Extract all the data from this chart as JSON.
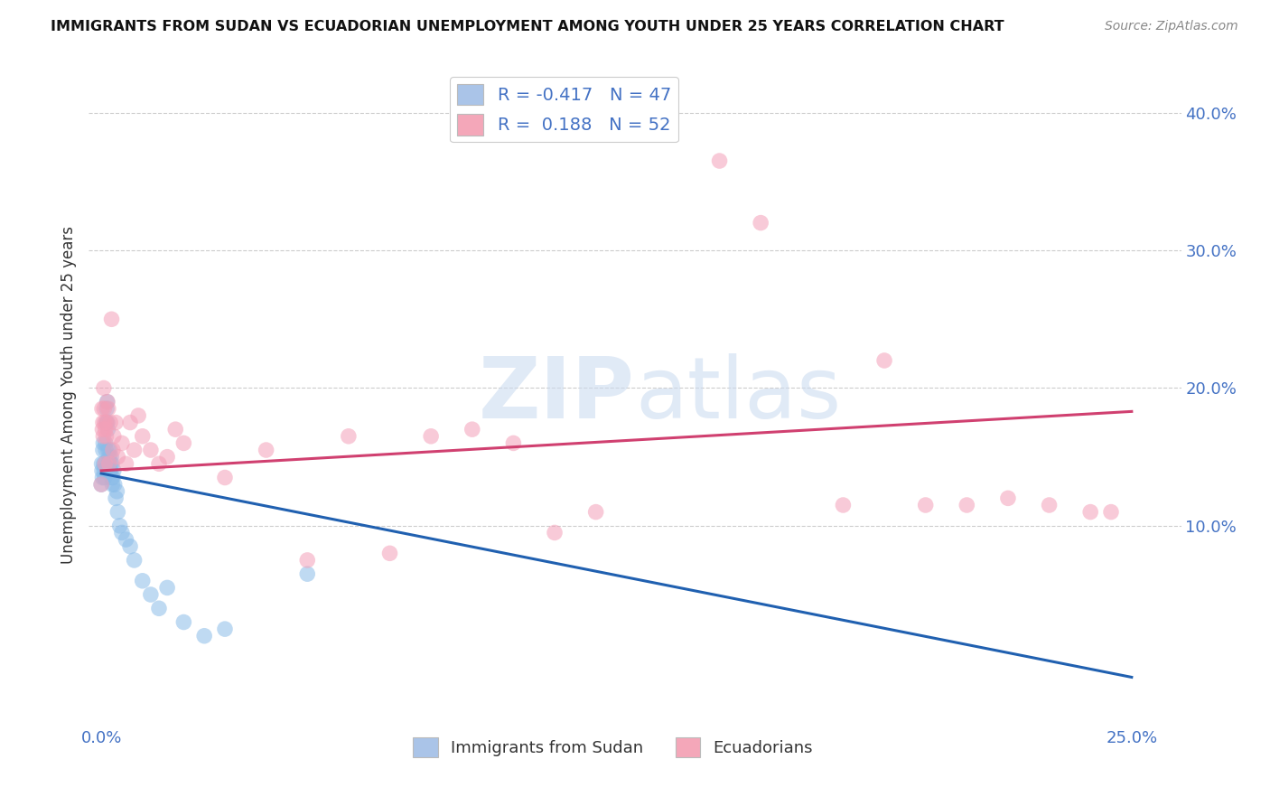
{
  "title": "IMMIGRANTS FROM SUDAN VS ECUADORIAN UNEMPLOYMENT AMONG YOUTH UNDER 25 YEARS CORRELATION CHART",
  "source": "Source: ZipAtlas.com",
  "ylabel": "Unemployment Among Youth under 25 years",
  "xlabel_ticks": [
    "0.0%",
    "25.0%"
  ],
  "xlabel_vals": [
    0.0,
    0.25
  ],
  "ylabel_ticks": [
    "10.0%",
    "20.0%",
    "30.0%",
    "40.0%"
  ],
  "ylabel_vals": [
    0.1,
    0.2,
    0.3,
    0.4
  ],
  "xlim": [
    -0.003,
    0.262
  ],
  "ylim": [
    -0.045,
    0.435
  ],
  "legend1_label": "R = -0.417   N = 47",
  "legend2_label": "R =  0.188   N = 52",
  "legend1_color": "#aac4e8",
  "legend2_color": "#f4a7b9",
  "watermark_zip": "ZIP",
  "watermark_atlas": "atlas",
  "series_blue": {
    "x": [
      0.0,
      0.0001,
      0.0002,
      0.0003,
      0.0004,
      0.0005,
      0.0006,
      0.0007,
      0.0008,
      0.0009,
      0.001,
      0.0011,
      0.0012,
      0.0013,
      0.0014,
      0.0015,
      0.0016,
      0.0017,
      0.0018,
      0.0019,
      0.002,
      0.0021,
      0.0022,
      0.0023,
      0.0024,
      0.0025,
      0.0026,
      0.0027,
      0.0028,
      0.003,
      0.0032,
      0.0035,
      0.0038,
      0.004,
      0.0045,
      0.005,
      0.006,
      0.007,
      0.008,
      0.01,
      0.012,
      0.014,
      0.016,
      0.02,
      0.025,
      0.03,
      0.05
    ],
    "y": [
      0.13,
      0.145,
      0.14,
      0.135,
      0.155,
      0.16,
      0.145,
      0.14,
      0.135,
      0.145,
      0.16,
      0.155,
      0.175,
      0.185,
      0.19,
      0.175,
      0.17,
      0.155,
      0.145,
      0.15,
      0.14,
      0.155,
      0.145,
      0.14,
      0.15,
      0.135,
      0.145,
      0.13,
      0.135,
      0.14,
      0.13,
      0.12,
      0.125,
      0.11,
      0.1,
      0.095,
      0.09,
      0.085,
      0.075,
      0.06,
      0.05,
      0.04,
      0.055,
      0.03,
      0.02,
      0.025,
      0.065
    ]
  },
  "series_pink": {
    "x": [
      0.0,
      0.0002,
      0.0003,
      0.0004,
      0.0005,
      0.0006,
      0.0007,
      0.0008,
      0.0009,
      0.001,
      0.0012,
      0.0013,
      0.0015,
      0.0017,
      0.0019,
      0.0022,
      0.0025,
      0.0028,
      0.003,
      0.0035,
      0.004,
      0.005,
      0.006,
      0.007,
      0.008,
      0.009,
      0.01,
      0.012,
      0.014,
      0.016,
      0.018,
      0.02,
      0.03,
      0.04,
      0.05,
      0.06,
      0.07,
      0.08,
      0.09,
      0.1,
      0.11,
      0.12,
      0.15,
      0.16,
      0.18,
      0.19,
      0.2,
      0.21,
      0.22,
      0.23,
      0.24,
      0.245
    ],
    "y": [
      0.13,
      0.185,
      0.17,
      0.175,
      0.165,
      0.2,
      0.185,
      0.175,
      0.145,
      0.17,
      0.165,
      0.175,
      0.19,
      0.185,
      0.145,
      0.175,
      0.25,
      0.155,
      0.165,
      0.175,
      0.15,
      0.16,
      0.145,
      0.175,
      0.155,
      0.18,
      0.165,
      0.155,
      0.145,
      0.15,
      0.17,
      0.16,
      0.135,
      0.155,
      0.075,
      0.165,
      0.08,
      0.165,
      0.17,
      0.16,
      0.095,
      0.11,
      0.365,
      0.32,
      0.115,
      0.22,
      0.115,
      0.115,
      0.12,
      0.115,
      0.11,
      0.11
    ]
  },
  "blue_line": {
    "x0": 0.0,
    "x1": 0.25,
    "y0": 0.138,
    "y1": -0.01
  },
  "pink_line": {
    "x0": 0.0,
    "x1": 0.25,
    "y0": 0.14,
    "y1": 0.183
  },
  "blue_scatter_color": "#8bbce8",
  "pink_scatter_color": "#f4a0b8",
  "blue_line_color": "#2060b0",
  "pink_line_color": "#d04070",
  "title_color": "#111111",
  "source_color": "#888888",
  "tick_color": "#4472c4",
  "grid_color": "#cccccc",
  "background_color": "#ffffff"
}
